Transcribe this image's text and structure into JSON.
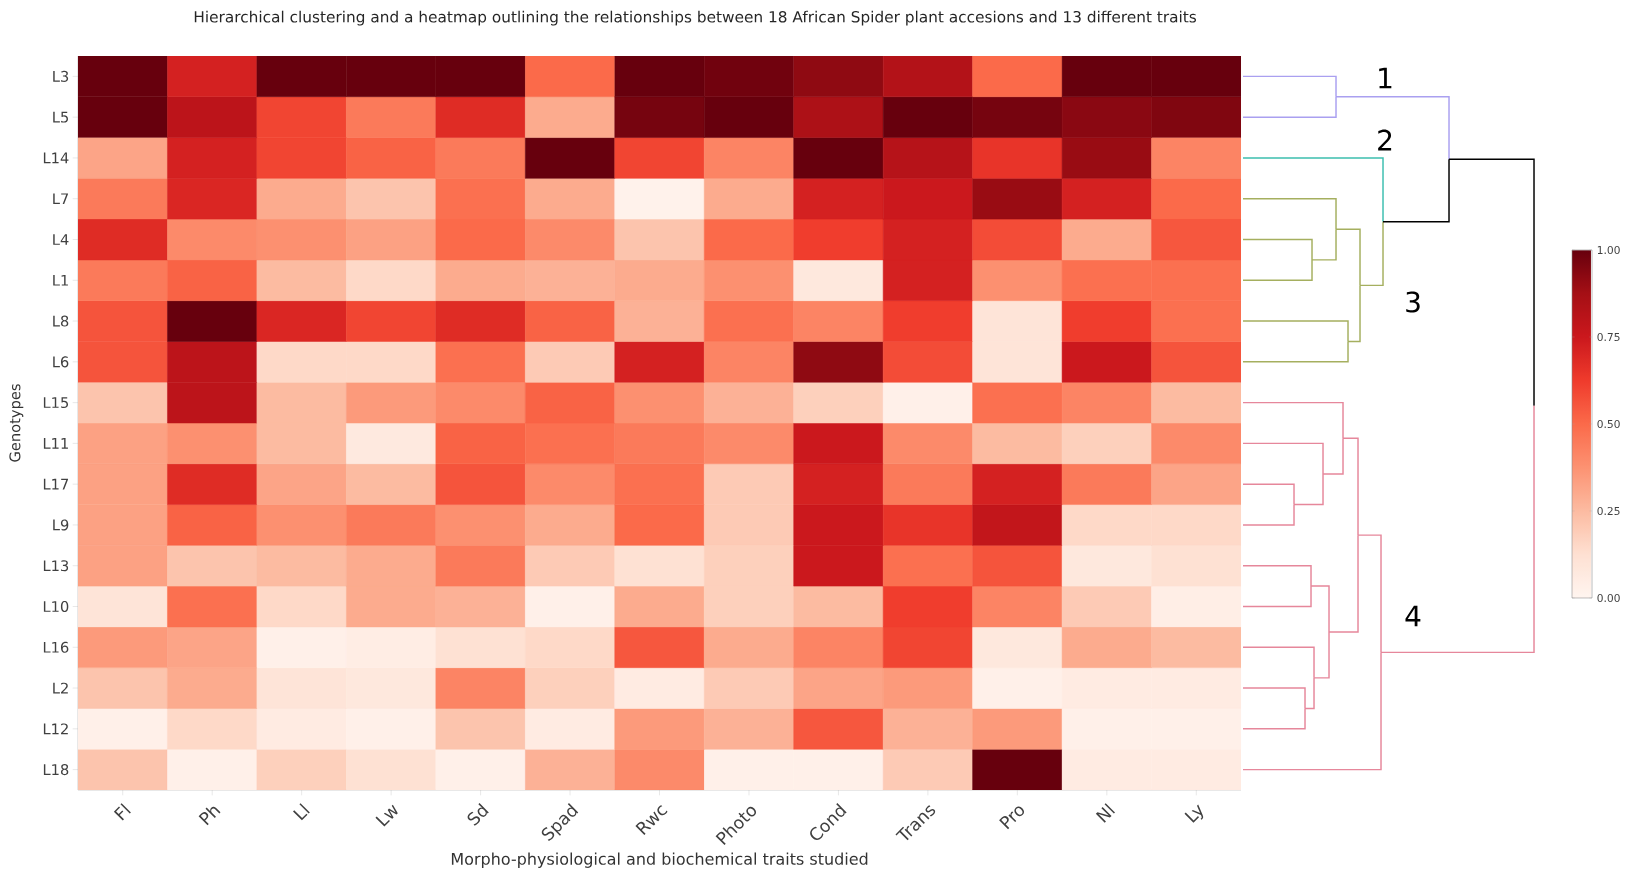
{
  "chart_data": {
    "type": "heatmap",
    "title": "Hierarchical clustering and a heatmap outlining the relationships between 18 African Spider plant accesions and 13 different traits",
    "xlabel": "Morpho-physiological and biochemical traits studied",
    "ylabel": "Genotypes",
    "categories": [
      "Fl",
      "Ph",
      "Ll",
      "Lw",
      "Sd",
      "Spad",
      "Rwc",
      "Photo",
      "Cond",
      "Trans",
      "Pro",
      "Nl",
      "Ly"
    ],
    "y_categories": [
      "L3",
      "L5",
      "L14",
      "L7",
      "L4",
      "L1",
      "L8",
      "L6",
      "L15",
      "L11",
      "L17",
      "L9",
      "L13",
      "L10",
      "L16",
      "L2",
      "L12",
      "L18"
    ],
    "cells": [
      [
        1,
        0.72,
        1,
        1,
        1,
        0.5,
        1,
        0.98,
        0.92,
        0.83,
        0.5,
        1,
        1
      ],
      [
        1,
        0.8,
        0.6,
        0.45,
        0.68,
        0.3,
        0.97,
        1,
        0.85,
        1,
        0.97,
        0.93,
        0.95
      ],
      [
        0.32,
        0.72,
        0.6,
        0.52,
        0.45,
        1,
        0.6,
        0.42,
        1,
        0.82,
        0.65,
        0.9,
        0.42
      ],
      [
        0.45,
        0.7,
        0.3,
        0.22,
        0.48,
        0.3,
        0.02,
        0.3,
        0.72,
        0.75,
        0.9,
        0.72,
        0.5
      ],
      [
        0.68,
        0.4,
        0.38,
        0.33,
        0.5,
        0.4,
        0.22,
        0.5,
        0.62,
        0.72,
        0.58,
        0.3,
        0.55
      ],
      [
        0.45,
        0.52,
        0.25,
        0.15,
        0.3,
        0.28,
        0.3,
        0.38,
        0.08,
        0.72,
        0.38,
        0.48,
        0.48
      ],
      [
        0.56,
        1,
        0.7,
        0.6,
        0.68,
        0.52,
        0.28,
        0.48,
        0.42,
        0.62,
        0.1,
        0.62,
        0.48
      ],
      [
        0.56,
        0.8,
        0.15,
        0.15,
        0.48,
        0.2,
        0.72,
        0.42,
        0.92,
        0.58,
        0.1,
        0.75,
        0.56
      ],
      [
        0.22,
        0.8,
        0.25,
        0.35,
        0.4,
        0.52,
        0.38,
        0.28,
        0.18,
        0.03,
        0.48,
        0.42,
        0.25
      ],
      [
        0.33,
        0.38,
        0.25,
        0.07,
        0.52,
        0.48,
        0.45,
        0.4,
        0.75,
        0.4,
        0.25,
        0.18,
        0.4
      ],
      [
        0.33,
        0.68,
        0.32,
        0.25,
        0.56,
        0.4,
        0.48,
        0.2,
        0.72,
        0.45,
        0.72,
        0.45,
        0.32
      ],
      [
        0.33,
        0.52,
        0.38,
        0.45,
        0.38,
        0.3,
        0.5,
        0.2,
        0.75,
        0.65,
        0.78,
        0.15,
        0.15
      ],
      [
        0.33,
        0.22,
        0.25,
        0.3,
        0.45,
        0.2,
        0.12,
        0.18,
        0.75,
        0.48,
        0.56,
        0.08,
        0.12
      ],
      [
        0.1,
        0.48,
        0.15,
        0.3,
        0.28,
        0.03,
        0.3,
        0.18,
        0.25,
        0.62,
        0.42,
        0.2,
        0.04
      ],
      [
        0.35,
        0.32,
        0.03,
        0.05,
        0.12,
        0.15,
        0.55,
        0.3,
        0.42,
        0.6,
        0.08,
        0.3,
        0.25
      ],
      [
        0.22,
        0.3,
        0.1,
        0.08,
        0.42,
        0.18,
        0.06,
        0.2,
        0.32,
        0.35,
        0.03,
        0.06,
        0.06
      ],
      [
        0.03,
        0.15,
        0.06,
        0.03,
        0.22,
        0.06,
        0.35,
        0.28,
        0.55,
        0.28,
        0.35,
        0.03,
        0.03
      ],
      [
        0.22,
        0.03,
        0.18,
        0.12,
        0.03,
        0.28,
        0.4,
        0.03,
        0.03,
        0.2,
        1,
        0.06,
        0.06
      ]
    ],
    "clim": [
      0,
      1
    ],
    "cticks": [
      {
        "value": 0,
        "label": "0.00"
      },
      {
        "value": 0.25,
        "label": "0.25"
      },
      {
        "value": 0.5,
        "label": "0.50"
      },
      {
        "value": 0.75,
        "label": "0.75"
      },
      {
        "value": 1,
        "label": "1.00"
      }
    ],
    "annotations": [
      "1",
      "2",
      "3",
      "4"
    ]
  }
}
